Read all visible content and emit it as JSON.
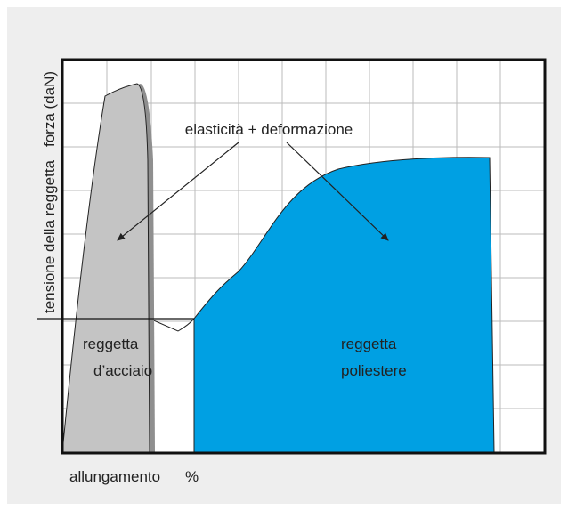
{
  "axes": {
    "y_label_left": "tensione della reggetta",
    "y_label_right": "forza (daN)",
    "x_label": "allungamento",
    "x_unit": "%"
  },
  "annotation": "elasticità + deformazione",
  "regions": [
    {
      "label_lines": [
        "reggetta",
        "d’acciaio"
      ]
    },
    {
      "label_lines": [
        "reggetta",
        "poliestere"
      ]
    }
  ]
}
